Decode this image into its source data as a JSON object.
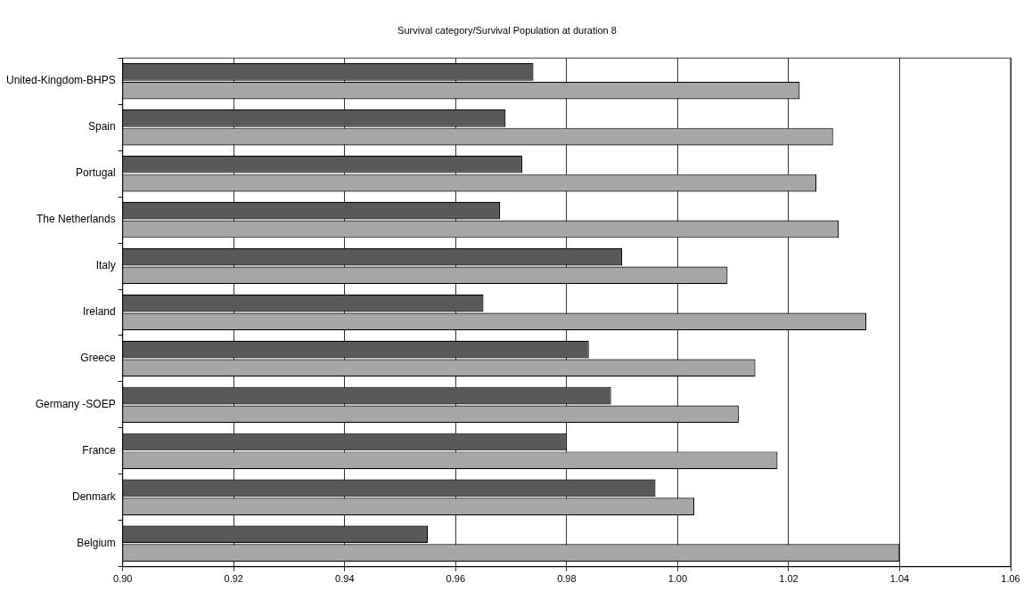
{
  "chart_data": {
    "type": "bar",
    "orientation": "horizontal",
    "title": "Survival category/Survival Population at duration 8",
    "categories": [
      "United-Kingdom-BHPS",
      "Spain",
      "Portugal",
      "The Netherlands",
      "Italy",
      "Ireland",
      "Greece",
      "Germany -SOEP",
      "France",
      "Denmark",
      "Belgium"
    ],
    "series": [
      {
        "color": "#595959",
        "values": [
          0.974,
          0.969,
          0.972,
          0.968,
          0.99,
          0.965,
          0.984,
          0.988,
          0.98,
          0.996,
          0.955
        ]
      },
      {
        "color": "#a6a6a6",
        "values": [
          1.022,
          1.028,
          1.025,
          1.029,
          1.009,
          1.034,
          1.014,
          1.011,
          1.018,
          1.003,
          1.04
        ]
      }
    ],
    "xlim": [
      0.9,
      1.06
    ],
    "xticks": [
      {
        "value": 0.9,
        "label": "0.90"
      },
      {
        "value": 0.92,
        "label": "0.92"
      },
      {
        "value": 0.94,
        "label": "0.94"
      },
      {
        "value": 0.96,
        "label": "0.96"
      },
      {
        "value": 0.98,
        "label": "0.98"
      },
      {
        "value": 1.0,
        "label": "1.00"
      },
      {
        "value": 1.02,
        "label": "1.02"
      },
      {
        "value": 1.04,
        "label": "1.04"
      },
      {
        "value": 1.06,
        "label": "1.06"
      }
    ],
    "grid": "x",
    "legend": false
  }
}
